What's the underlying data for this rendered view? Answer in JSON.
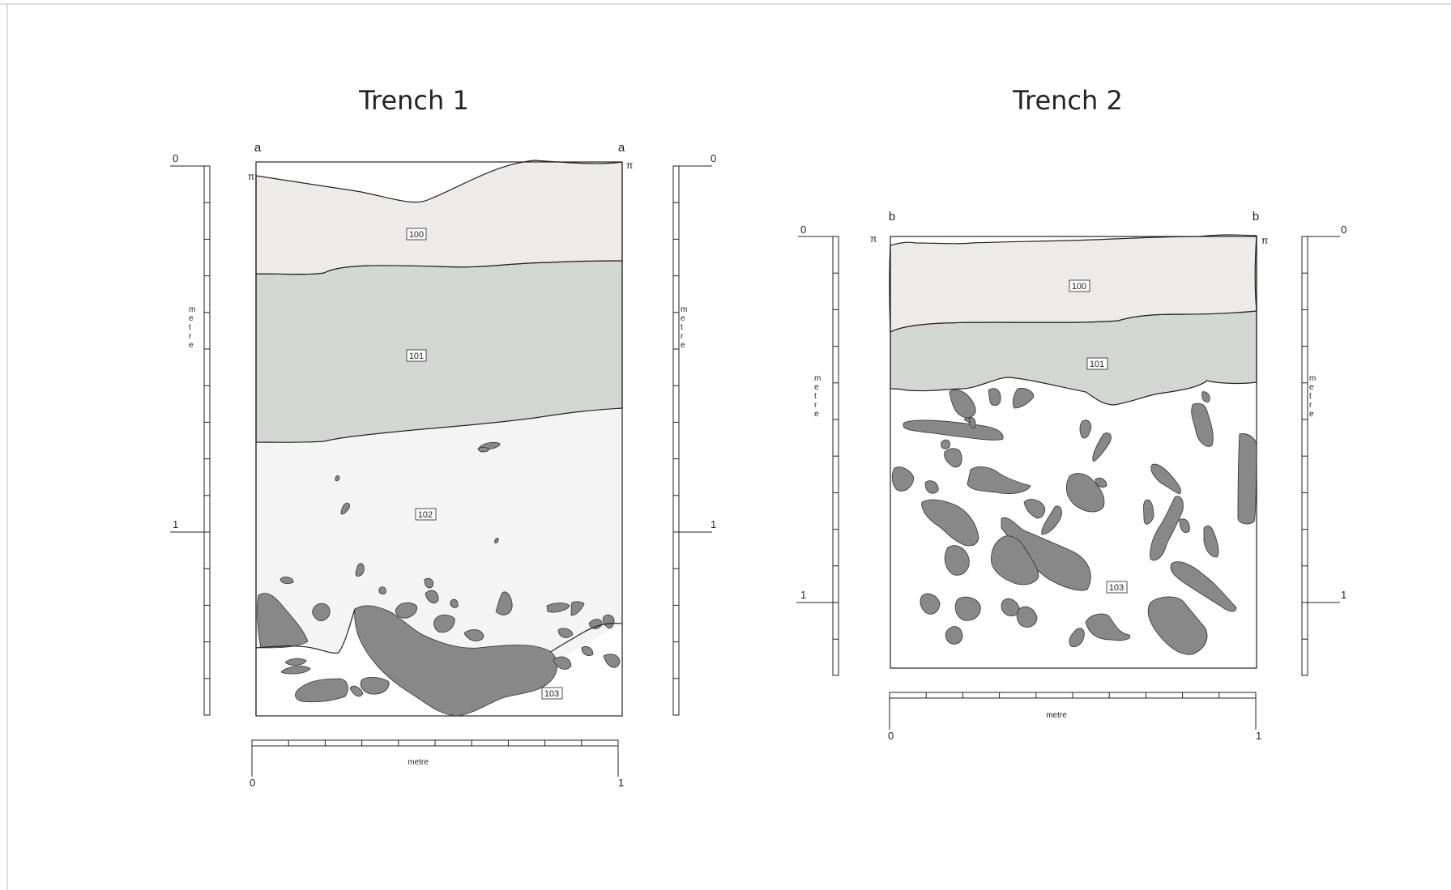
{
  "trench1": {
    "title": "Trench 1",
    "section_left": "a",
    "section_right": "a",
    "contexts": [
      "100",
      "101",
      "102",
      "103"
    ],
    "v_scale": {
      "top": "0",
      "mark": "1",
      "unit": "metre"
    },
    "h_scale": {
      "start": "0",
      "end": "1",
      "unit": "metre"
    }
  },
  "trench2": {
    "title": "Trench 2",
    "section_left": "b",
    "section_right": "b",
    "contexts": [
      "100",
      "101",
      "103"
    ],
    "v_scale": {
      "top": "0",
      "mark": "1",
      "unit": "metre"
    },
    "h_scale": {
      "start": "0",
      "end": "1",
      "unit": "metre"
    }
  },
  "colors": {
    "layer_100": "#edebe9",
    "layer_101": "#d4d6d4",
    "layer_102": "#f3f4f3",
    "stone": "#888888"
  }
}
